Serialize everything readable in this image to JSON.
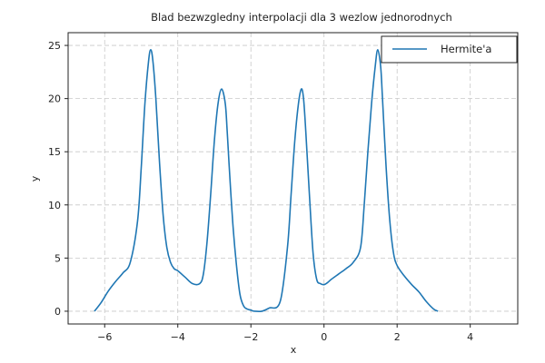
{
  "chart_data": {
    "type": "line",
    "title": "Blad bezwzgledny interpolacji dla 3 wezlow jednorodnych",
    "xlabel": "x",
    "ylabel": "y",
    "xlim": [
      -7.0,
      5.3
    ],
    "ylim": [
      -1.2,
      26.2
    ],
    "xticks": [
      -6,
      -4,
      -2,
      0,
      2,
      4
    ],
    "yticks": [
      0,
      5,
      10,
      15,
      20,
      25
    ],
    "grid": true,
    "legend_position": "top-right",
    "series": [
      {
        "name": "Hermite'a",
        "color": "#1f77b4",
        "x": [
          -6.28,
          -6.1,
          -5.9,
          -5.7,
          -5.5,
          -5.3,
          -5.1,
          -5.0,
          -4.9,
          -4.8,
          -4.74,
          -4.68,
          -4.6,
          -4.5,
          -4.4,
          -4.3,
          -4.2,
          -4.1,
          -4.0,
          -3.8,
          -3.6,
          -3.4,
          -3.3,
          -3.2,
          -3.1,
          -3.0,
          -2.9,
          -2.8,
          -2.7,
          -2.65,
          -2.6,
          -2.5,
          -2.4,
          -2.3,
          -2.2,
          -2.1,
          -2.0,
          -1.9,
          -1.7,
          -1.5,
          -1.2,
          -1.0,
          -0.9,
          -0.8,
          -0.7,
          -0.62,
          -0.56,
          -0.5,
          -0.4,
          -0.3,
          -0.2,
          -0.1,
          0.0,
          0.1,
          0.2,
          0.4,
          0.6,
          0.8,
          1.0,
          1.1,
          1.2,
          1.3,
          1.4,
          1.47,
          1.55,
          1.6,
          1.7,
          1.8,
          1.9,
          2.0,
          2.2,
          2.4,
          2.6,
          2.8,
          3.0,
          3.12
        ],
        "y": [
          0.0,
          0.8,
          1.9,
          2.8,
          3.6,
          4.6,
          8.5,
          13.5,
          19.5,
          23.5,
          24.6,
          23.5,
          20.0,
          14.0,
          9.0,
          6.0,
          4.6,
          4.0,
          3.8,
          3.2,
          2.6,
          2.6,
          3.5,
          6.5,
          11.0,
          16.0,
          19.5,
          20.9,
          19.5,
          17.0,
          14.0,
          8.5,
          4.5,
          1.6,
          0.5,
          0.2,
          0.1,
          0.0,
          0.0,
          0.3,
          0.9,
          6.0,
          11.0,
          16.0,
          19.5,
          20.9,
          20.0,
          17.0,
          11.0,
          5.5,
          3.0,
          2.6,
          2.5,
          2.7,
          3.0,
          3.5,
          4.0,
          4.6,
          6.0,
          10.0,
          15.0,
          19.5,
          23.0,
          24.6,
          23.0,
          20.0,
          13.5,
          8.5,
          5.5,
          4.3,
          3.3,
          2.5,
          1.8,
          0.9,
          0.2,
          0.0
        ]
      }
    ]
  }
}
